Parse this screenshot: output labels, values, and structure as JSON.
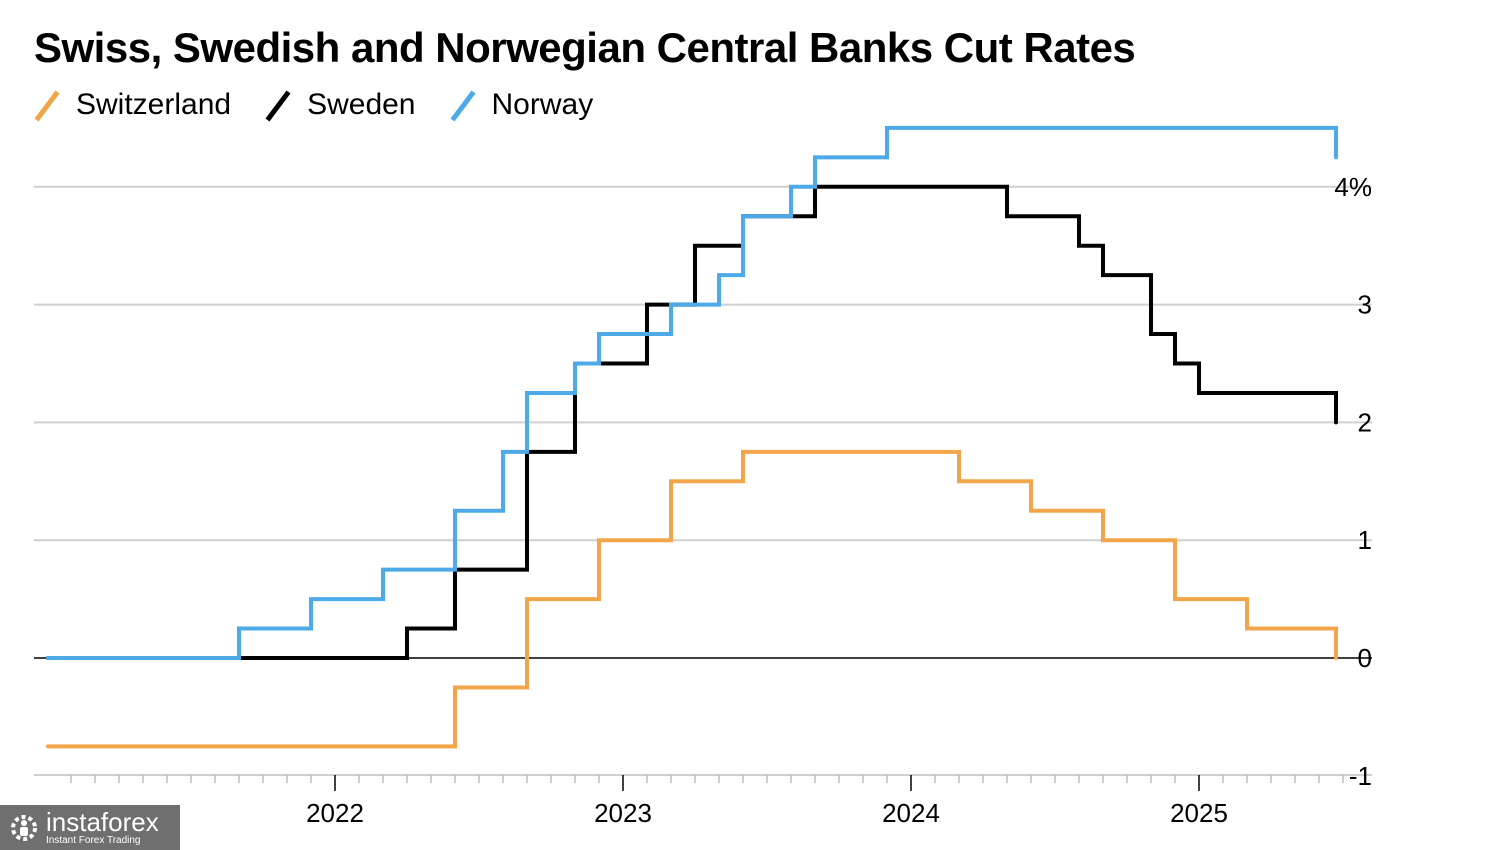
{
  "chart_data": {
    "type": "line",
    "step": true,
    "title": "Swiss, Swedish and Norwegian Central Banks Cut Rates",
    "xlabel": "",
    "ylabel": "",
    "x_ticks": [
      "2022",
      "2023",
      "2024",
      "2025"
    ],
    "y_ticks": [
      {
        "value": -1,
        "label": "-1"
      },
      {
        "value": 0,
        "label": "0"
      },
      {
        "value": 1,
        "label": "1"
      },
      {
        "value": 2,
        "label": "2"
      },
      {
        "value": 3,
        "label": "3"
      },
      {
        "value": 4,
        "label": "4%"
      }
    ],
    "xlim": [
      "2021-01",
      "2025-07"
    ],
    "ylim": [
      -1,
      4.5
    ],
    "grid": true,
    "legend": "top-left",
    "series": [
      {
        "name": "Switzerland",
        "color": "#f2a649",
        "points": [
          [
            "2021-01",
            -0.75
          ],
          [
            "2022-06",
            -0.25
          ],
          [
            "2022-09",
            0.5
          ],
          [
            "2022-12",
            1.0
          ],
          [
            "2023-03",
            1.5
          ],
          [
            "2023-06",
            1.75
          ],
          [
            "2024-03",
            1.5
          ],
          [
            "2024-06",
            1.25
          ],
          [
            "2024-09",
            1.0
          ],
          [
            "2024-12",
            0.5
          ],
          [
            "2025-03",
            0.25
          ],
          [
            "2025-06",
            0.0
          ]
        ]
      },
      {
        "name": "Sweden",
        "color": "#000000",
        "points": [
          [
            "2021-01",
            0.0
          ],
          [
            "2022-04",
            0.25
          ],
          [
            "2022-06",
            0.75
          ],
          [
            "2022-09",
            1.75
          ],
          [
            "2022-11",
            2.5
          ],
          [
            "2023-02",
            3.0
          ],
          [
            "2023-04",
            3.5
          ],
          [
            "2023-06",
            3.75
          ],
          [
            "2023-09",
            4.0
          ],
          [
            "2024-05",
            3.75
          ],
          [
            "2024-08",
            3.5
          ],
          [
            "2024-09",
            3.25
          ],
          [
            "2024-11",
            2.75
          ],
          [
            "2024-12",
            2.5
          ],
          [
            "2025-01",
            2.25
          ],
          [
            "2025-06",
            2.0
          ]
        ]
      },
      {
        "name": "Norway",
        "color": "#4ea9e8",
        "points": [
          [
            "2021-01",
            0.0
          ],
          [
            "2021-09",
            0.25
          ],
          [
            "2021-12",
            0.5
          ],
          [
            "2022-03",
            0.75
          ],
          [
            "2022-06",
            1.25
          ],
          [
            "2022-08",
            1.75
          ],
          [
            "2022-09",
            2.25
          ],
          [
            "2022-11",
            2.5
          ],
          [
            "2022-12",
            2.75
          ],
          [
            "2023-03",
            3.0
          ],
          [
            "2023-05",
            3.25
          ],
          [
            "2023-06",
            3.75
          ],
          [
            "2023-08",
            4.0
          ],
          [
            "2023-09",
            4.25
          ],
          [
            "2023-12",
            4.5
          ],
          [
            "2025-06",
            4.25
          ]
        ]
      }
    ]
  },
  "footer": {
    "logo_main": "instaforex",
    "logo_sub": "Instant Forex Trading"
  }
}
